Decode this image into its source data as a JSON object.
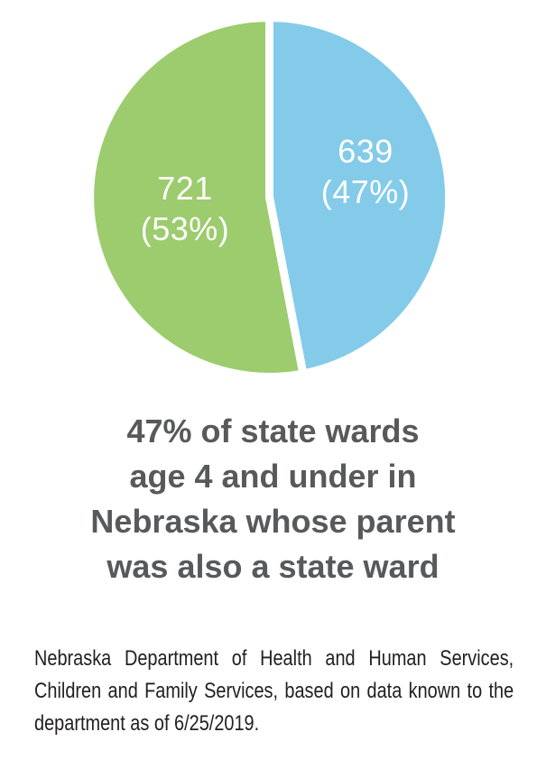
{
  "chart_data": {
    "type": "pie",
    "title": "47% of state wards age 4 and under in Nebraska whose parent was also a state ward",
    "start_angle_deg": 0,
    "direction": "clockwise",
    "slice_border_color": "#ffffff",
    "label_color": "#ffffff",
    "slices": [
      {
        "value": 639,
        "percent": 47,
        "color": "#84cbea",
        "value_label": "639",
        "percent_label": "(47%)"
      },
      {
        "value": 721,
        "percent": 53,
        "color": "#9ccc6d",
        "value_label": "721",
        "percent_label": "(53%)"
      }
    ]
  },
  "title": {
    "color": "#58595b",
    "lines": [
      "47% of state wards",
      "age 4 and under in",
      "Nebraska whose parent",
      "was also a state ward"
    ]
  },
  "source_note": {
    "color": "#231f20",
    "lines": [
      "Nebraska Department of Health and Human Services,",
      "Children and Family Services, based on data known to the",
      "department as of 6/25/2019."
    ]
  }
}
